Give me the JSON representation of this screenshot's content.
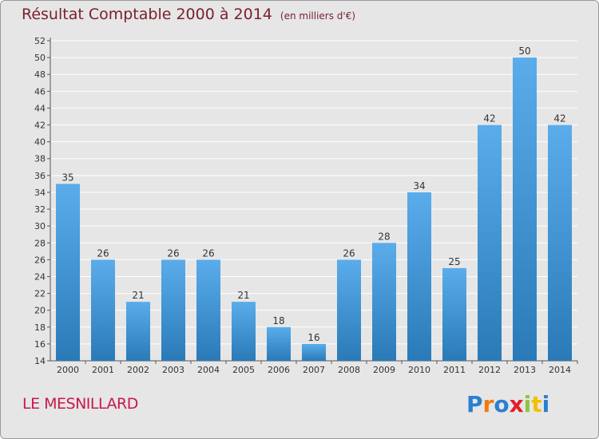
{
  "header": {
    "title": "Résultat Comptable 2000 à 2014",
    "subtitle": "(en milliers d'€)"
  },
  "footer": {
    "place": "LE MESNILLARD",
    "logo_text": "Proxiti",
    "logo_colors": [
      "#2a7fd0",
      "#f07a10",
      "#2a7fd0",
      "#e0202a",
      "#8cc63f",
      "#f0c000",
      "#2a7fd0"
    ]
  },
  "colors": {
    "bar_top": "#5aacea",
    "bar_bottom": "#2a7ab8",
    "grid": "#ffffff",
    "background": "#e6e6e6",
    "title": "#7a2030",
    "place": "#c8184c"
  },
  "chart_data": {
    "type": "bar",
    "categories": [
      "2000",
      "2001",
      "2002",
      "2003",
      "2004",
      "2005",
      "2006",
      "2007",
      "2008",
      "2009",
      "2010",
      "2011",
      "2012",
      "2013",
      "2014"
    ],
    "values": [
      35,
      26,
      21,
      26,
      26,
      21,
      18,
      16,
      26,
      28,
      34,
      25,
      42,
      50,
      42
    ],
    "title": "Résultat Comptable 2000 à 2014",
    "subtitle": "(en milliers d'€)",
    "xlabel": "",
    "ylabel": "",
    "ylim": [
      14,
      52
    ],
    "yticks": [
      14,
      16,
      18,
      20,
      22,
      24,
      26,
      28,
      30,
      32,
      34,
      36,
      38,
      40,
      42,
      44,
      46,
      48,
      50,
      52
    ],
    "grid": true
  }
}
